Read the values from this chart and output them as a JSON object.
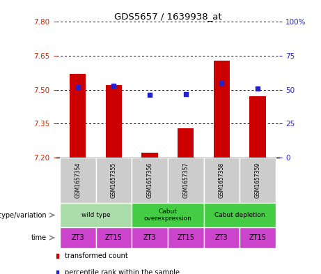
{
  "title": "GDS5657 / 1639938_at",
  "samples": [
    "GSM1657354",
    "GSM1657355",
    "GSM1657356",
    "GSM1657357",
    "GSM1657358",
    "GSM1657359"
  ],
  "transformed_counts": [
    7.57,
    7.52,
    7.22,
    7.33,
    7.63,
    7.47
  ],
  "percentile_ranks": [
    52,
    53,
    46,
    47,
    55,
    51
  ],
  "ylim_left": [
    7.2,
    7.8
  ],
  "yticks_left": [
    7.2,
    7.35,
    7.5,
    7.65,
    7.8
  ],
  "ylim_right": [
    0,
    100
  ],
  "yticks_right": [
    0,
    25,
    50,
    75,
    100
  ],
  "ytick_labels_right": [
    "0",
    "25",
    "50",
    "75",
    "100%"
  ],
  "bar_color": "#cc0000",
  "dot_color": "#2222cc",
  "bar_bottom": 7.2,
  "group_defs": [
    {
      "c1": 0,
      "c2": 1,
      "label": "wild type",
      "color": "#aaddaa"
    },
    {
      "c1": 2,
      "c2": 3,
      "label": "Cabut\noverexpression",
      "color": "#44cc44"
    },
    {
      "c1": 4,
      "c2": 5,
      "label": "Cabut depletion",
      "color": "#44cc44"
    }
  ],
  "time_labels": [
    "ZT3",
    "ZT15",
    "ZT3",
    "ZT15",
    "ZT3",
    "ZT15"
  ],
  "time_color": "#cc44cc",
  "sample_box_color": "#cccccc",
  "genotype_label": "genotype/variation",
  "time_label": "time",
  "legend_red_label": "transformed count",
  "legend_blue_label": "percentile rank within the sample",
  "left_tick_color": "#cc2200",
  "right_tick_color": "#2222cc",
  "bar_width": 0.45
}
